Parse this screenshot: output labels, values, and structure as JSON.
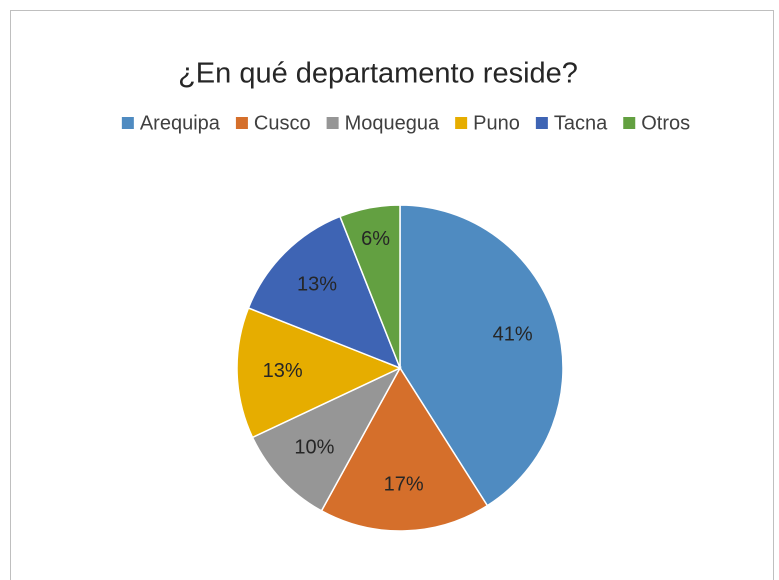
{
  "chart_data": {
    "type": "pie",
    "title": "¿En qué departamento reside?",
    "categories": [
      "Arequipa",
      "Cusco",
      "Moquegua",
      "Puno",
      "Tacna",
      "Otros"
    ],
    "values": [
      41,
      17,
      10,
      13,
      13,
      6
    ],
    "value_labels": [
      "41%",
      "17%",
      "10%",
      "13%",
      "13%",
      "6%"
    ],
    "colors": [
      "#4f8bc1",
      "#d56f2b",
      "#969696",
      "#e6ad00",
      "#3e64b4",
      "#63a041"
    ],
    "legend": "top"
  }
}
